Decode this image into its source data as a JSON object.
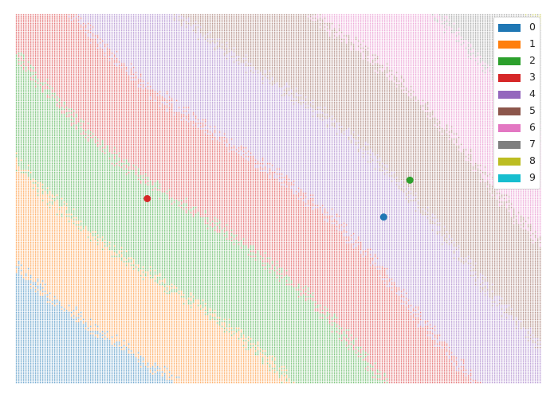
{
  "palette": [
    "#1f77b4",
    "#ff7f0e",
    "#2ca02c",
    "#d62728",
    "#9467bd",
    "#8c564b",
    "#e377c2",
    "#7f7f7f",
    "#bcbd22",
    "#17becf"
  ],
  "legend": {
    "position": "top-right",
    "items": [
      {
        "label": "0",
        "color": "#1f77b4"
      },
      {
        "label": "1",
        "color": "#ff7f0e"
      },
      {
        "label": "2",
        "color": "#2ca02c"
      },
      {
        "label": "3",
        "color": "#d62728"
      },
      {
        "label": "4",
        "color": "#9467bd"
      },
      {
        "label": "5",
        "color": "#8c564b"
      },
      {
        "label": "6",
        "color": "#e377c2"
      },
      {
        "label": "7",
        "color": "#7f7f7f"
      },
      {
        "label": "8",
        "color": "#bcbd22"
      },
      {
        "label": "9",
        "color": "#17becf"
      }
    ]
  },
  "chart_data": {
    "type": "scatter",
    "title": "",
    "xlabel": "",
    "ylabel": "",
    "axes_visible": false,
    "grid": false,
    "background": "dense grid of small dots colored by predicted class (decision regions)",
    "region_order": [
      "0",
      "1",
      "2",
      "3",
      "4",
      "5",
      "6",
      "7",
      "8"
    ],
    "series": [
      {
        "name": "3",
        "points": [
          {
            "x": 0.25,
            "y": 0.5
          }
        ],
        "color": "#d62728"
      },
      {
        "name": "2",
        "points": [
          {
            "x": 0.75,
            "y": 0.55
          }
        ],
        "color": "#2ca02c"
      },
      {
        "name": "0",
        "points": [
          {
            "x": 0.7,
            "y": 0.45
          }
        ],
        "color": "#1f77b4"
      }
    ]
  }
}
